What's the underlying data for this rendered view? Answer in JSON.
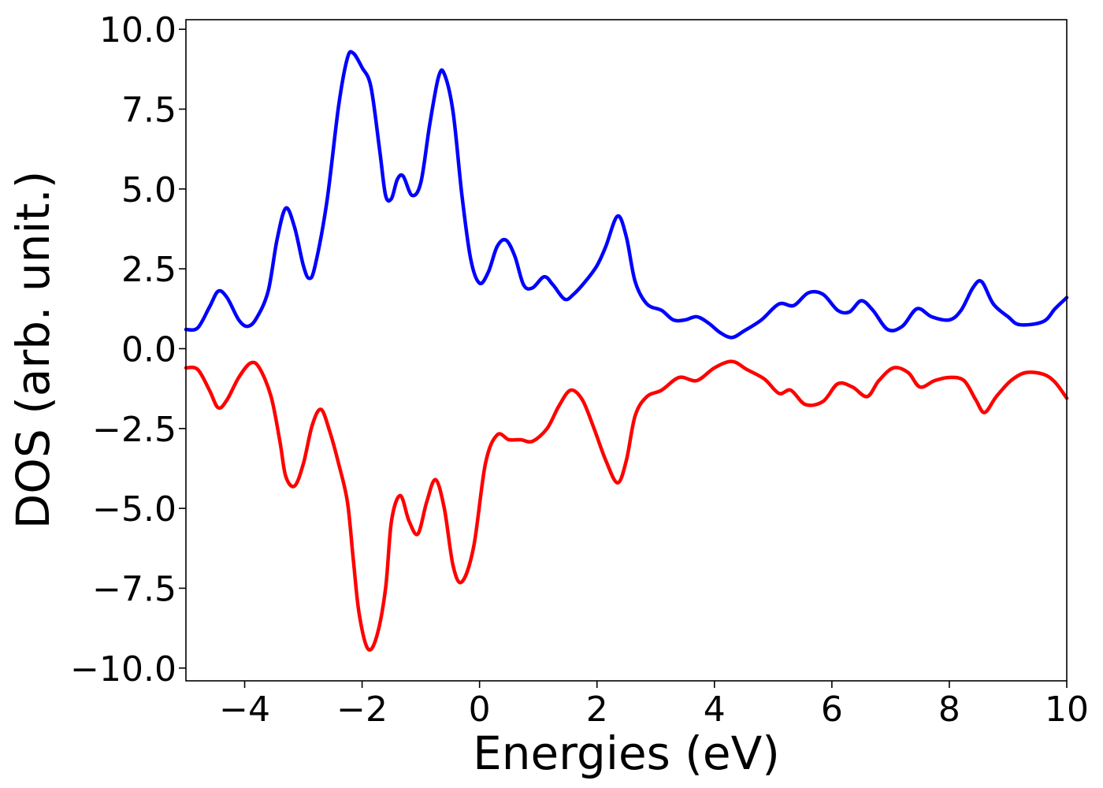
{
  "chart_data": {
    "type": "line",
    "title": "",
    "xlabel": "Energies (eV)",
    "ylabel": "DOS (arb. unit.)",
    "xlim": [
      -5,
      10
    ],
    "ylim": [
      -10.4,
      10.3
    ],
    "grid": false,
    "legend": "none",
    "x_ticks": [
      -4,
      -2,
      0,
      2,
      4,
      6,
      8,
      10
    ],
    "x_tick_labels": [
      "−4",
      "−2",
      "0",
      "2",
      "4",
      "6",
      "8",
      "10"
    ],
    "y_ticks": [
      10,
      7.5,
      5,
      2.5,
      0,
      -2.5,
      -5,
      -7.5,
      -10
    ],
    "y_tick_labels": [
      "10.0",
      "7.5",
      "5.0",
      "2.5",
      "0.0",
      "−2.5",
      "−5.0",
      "−7.5",
      "−10.0"
    ],
    "series": [
      {
        "color": "#0000ff",
        "points": [
          [
            -5.0,
            0.6
          ],
          [
            -4.8,
            0.65
          ],
          [
            -4.6,
            1.3
          ],
          [
            -4.45,
            1.8
          ],
          [
            -4.3,
            1.6
          ],
          [
            -4.1,
            0.9
          ],
          [
            -3.95,
            0.7
          ],
          [
            -3.8,
            0.95
          ],
          [
            -3.6,
            1.8
          ],
          [
            -3.45,
            3.4
          ],
          [
            -3.3,
            4.4
          ],
          [
            -3.15,
            3.8
          ],
          [
            -3.0,
            2.6
          ],
          [
            -2.9,
            2.2
          ],
          [
            -2.8,
            2.6
          ],
          [
            -2.6,
            4.6
          ],
          [
            -2.4,
            7.6
          ],
          [
            -2.25,
            9.1
          ],
          [
            -2.15,
            9.25
          ],
          [
            -2.0,
            8.8
          ],
          [
            -1.85,
            8.2
          ],
          [
            -1.7,
            6.2
          ],
          [
            -1.6,
            4.8
          ],
          [
            -1.5,
            4.7
          ],
          [
            -1.4,
            5.3
          ],
          [
            -1.3,
            5.4
          ],
          [
            -1.15,
            4.8
          ],
          [
            -1.0,
            5.2
          ],
          [
            -0.85,
            7.0
          ],
          [
            -0.7,
            8.5
          ],
          [
            -0.6,
            8.6
          ],
          [
            -0.45,
            7.4
          ],
          [
            -0.3,
            4.8
          ],
          [
            -0.15,
            2.8
          ],
          [
            0.0,
            2.05
          ],
          [
            0.15,
            2.4
          ],
          [
            0.3,
            3.2
          ],
          [
            0.45,
            3.4
          ],
          [
            0.6,
            2.9
          ],
          [
            0.75,
            2.0
          ],
          [
            0.9,
            1.9
          ],
          [
            1.1,
            2.25
          ],
          [
            1.25,
            2.0
          ],
          [
            1.45,
            1.55
          ],
          [
            1.6,
            1.7
          ],
          [
            1.8,
            2.1
          ],
          [
            2.0,
            2.6
          ],
          [
            2.15,
            3.2
          ],
          [
            2.35,
            4.15
          ],
          [
            2.5,
            3.5
          ],
          [
            2.65,
            2.1
          ],
          [
            2.85,
            1.4
          ],
          [
            3.1,
            1.2
          ],
          [
            3.3,
            0.9
          ],
          [
            3.5,
            0.9
          ],
          [
            3.7,
            1.0
          ],
          [
            3.9,
            0.8
          ],
          [
            4.1,
            0.5
          ],
          [
            4.3,
            0.35
          ],
          [
            4.5,
            0.55
          ],
          [
            4.8,
            0.9
          ],
          [
            5.1,
            1.4
          ],
          [
            5.35,
            1.35
          ],
          [
            5.6,
            1.75
          ],
          [
            5.85,
            1.7
          ],
          [
            6.1,
            1.2
          ],
          [
            6.3,
            1.15
          ],
          [
            6.5,
            1.5
          ],
          [
            6.7,
            1.2
          ],
          [
            6.95,
            0.6
          ],
          [
            7.2,
            0.7
          ],
          [
            7.45,
            1.25
          ],
          [
            7.7,
            1.0
          ],
          [
            8.0,
            0.9
          ],
          [
            8.2,
            1.2
          ],
          [
            8.4,
            1.9
          ],
          [
            8.55,
            2.1
          ],
          [
            8.75,
            1.4
          ],
          [
            9.0,
            1.0
          ],
          [
            9.2,
            0.75
          ],
          [
            9.6,
            0.85
          ],
          [
            9.8,
            1.25
          ],
          [
            10.0,
            1.6
          ]
        ]
      },
      {
        "color": "#ff0000",
        "points": [
          [
            -5.0,
            -0.6
          ],
          [
            -4.8,
            -0.65
          ],
          [
            -4.6,
            -1.3
          ],
          [
            -4.45,
            -1.85
          ],
          [
            -4.3,
            -1.6
          ],
          [
            -4.1,
            -0.9
          ],
          [
            -3.9,
            -0.45
          ],
          [
            -3.75,
            -0.6
          ],
          [
            -3.55,
            -1.5
          ],
          [
            -3.4,
            -2.9
          ],
          [
            -3.3,
            -4.0
          ],
          [
            -3.15,
            -4.3
          ],
          [
            -3.0,
            -3.6
          ],
          [
            -2.85,
            -2.4
          ],
          [
            -2.7,
            -1.9
          ],
          [
            -2.55,
            -2.6
          ],
          [
            -2.4,
            -3.6
          ],
          [
            -2.25,
            -4.8
          ],
          [
            -2.15,
            -6.6
          ],
          [
            -2.05,
            -8.3
          ],
          [
            -1.9,
            -9.4
          ],
          [
            -1.75,
            -9.0
          ],
          [
            -1.6,
            -7.5
          ],
          [
            -1.5,
            -5.4
          ],
          [
            -1.35,
            -4.6
          ],
          [
            -1.2,
            -5.4
          ],
          [
            -1.05,
            -5.8
          ],
          [
            -0.9,
            -4.8
          ],
          [
            -0.75,
            -4.1
          ],
          [
            -0.6,
            -5.0
          ],
          [
            -0.45,
            -6.8
          ],
          [
            -0.3,
            -7.3
          ],
          [
            -0.1,
            -6.2
          ],
          [
            0.1,
            -3.6
          ],
          [
            0.3,
            -2.7
          ],
          [
            0.5,
            -2.85
          ],
          [
            0.7,
            -2.85
          ],
          [
            0.9,
            -2.9
          ],
          [
            1.15,
            -2.5
          ],
          [
            1.35,
            -1.8
          ],
          [
            1.55,
            -1.3
          ],
          [
            1.75,
            -1.6
          ],
          [
            1.95,
            -2.5
          ],
          [
            2.15,
            -3.5
          ],
          [
            2.35,
            -4.2
          ],
          [
            2.5,
            -3.5
          ],
          [
            2.65,
            -2.1
          ],
          [
            2.85,
            -1.5
          ],
          [
            3.1,
            -1.3
          ],
          [
            3.4,
            -0.9
          ],
          [
            3.7,
            -1.0
          ],
          [
            4.0,
            -0.6
          ],
          [
            4.3,
            -0.4
          ],
          [
            4.55,
            -0.65
          ],
          [
            4.85,
            -0.95
          ],
          [
            5.1,
            -1.4
          ],
          [
            5.3,
            -1.3
          ],
          [
            5.55,
            -1.75
          ],
          [
            5.85,
            -1.65
          ],
          [
            6.1,
            -1.1
          ],
          [
            6.35,
            -1.2
          ],
          [
            6.6,
            -1.5
          ],
          [
            6.8,
            -1.0
          ],
          [
            7.05,
            -0.6
          ],
          [
            7.3,
            -0.75
          ],
          [
            7.5,
            -1.2
          ],
          [
            7.75,
            -1.0
          ],
          [
            8.0,
            -0.9
          ],
          [
            8.25,
            -1.0
          ],
          [
            8.45,
            -1.6
          ],
          [
            8.6,
            -2.0
          ],
          [
            8.8,
            -1.5
          ],
          [
            9.05,
            -1.0
          ],
          [
            9.3,
            -0.75
          ],
          [
            9.6,
            -0.8
          ],
          [
            9.8,
            -1.05
          ],
          [
            10.0,
            -1.55
          ]
        ]
      }
    ]
  }
}
